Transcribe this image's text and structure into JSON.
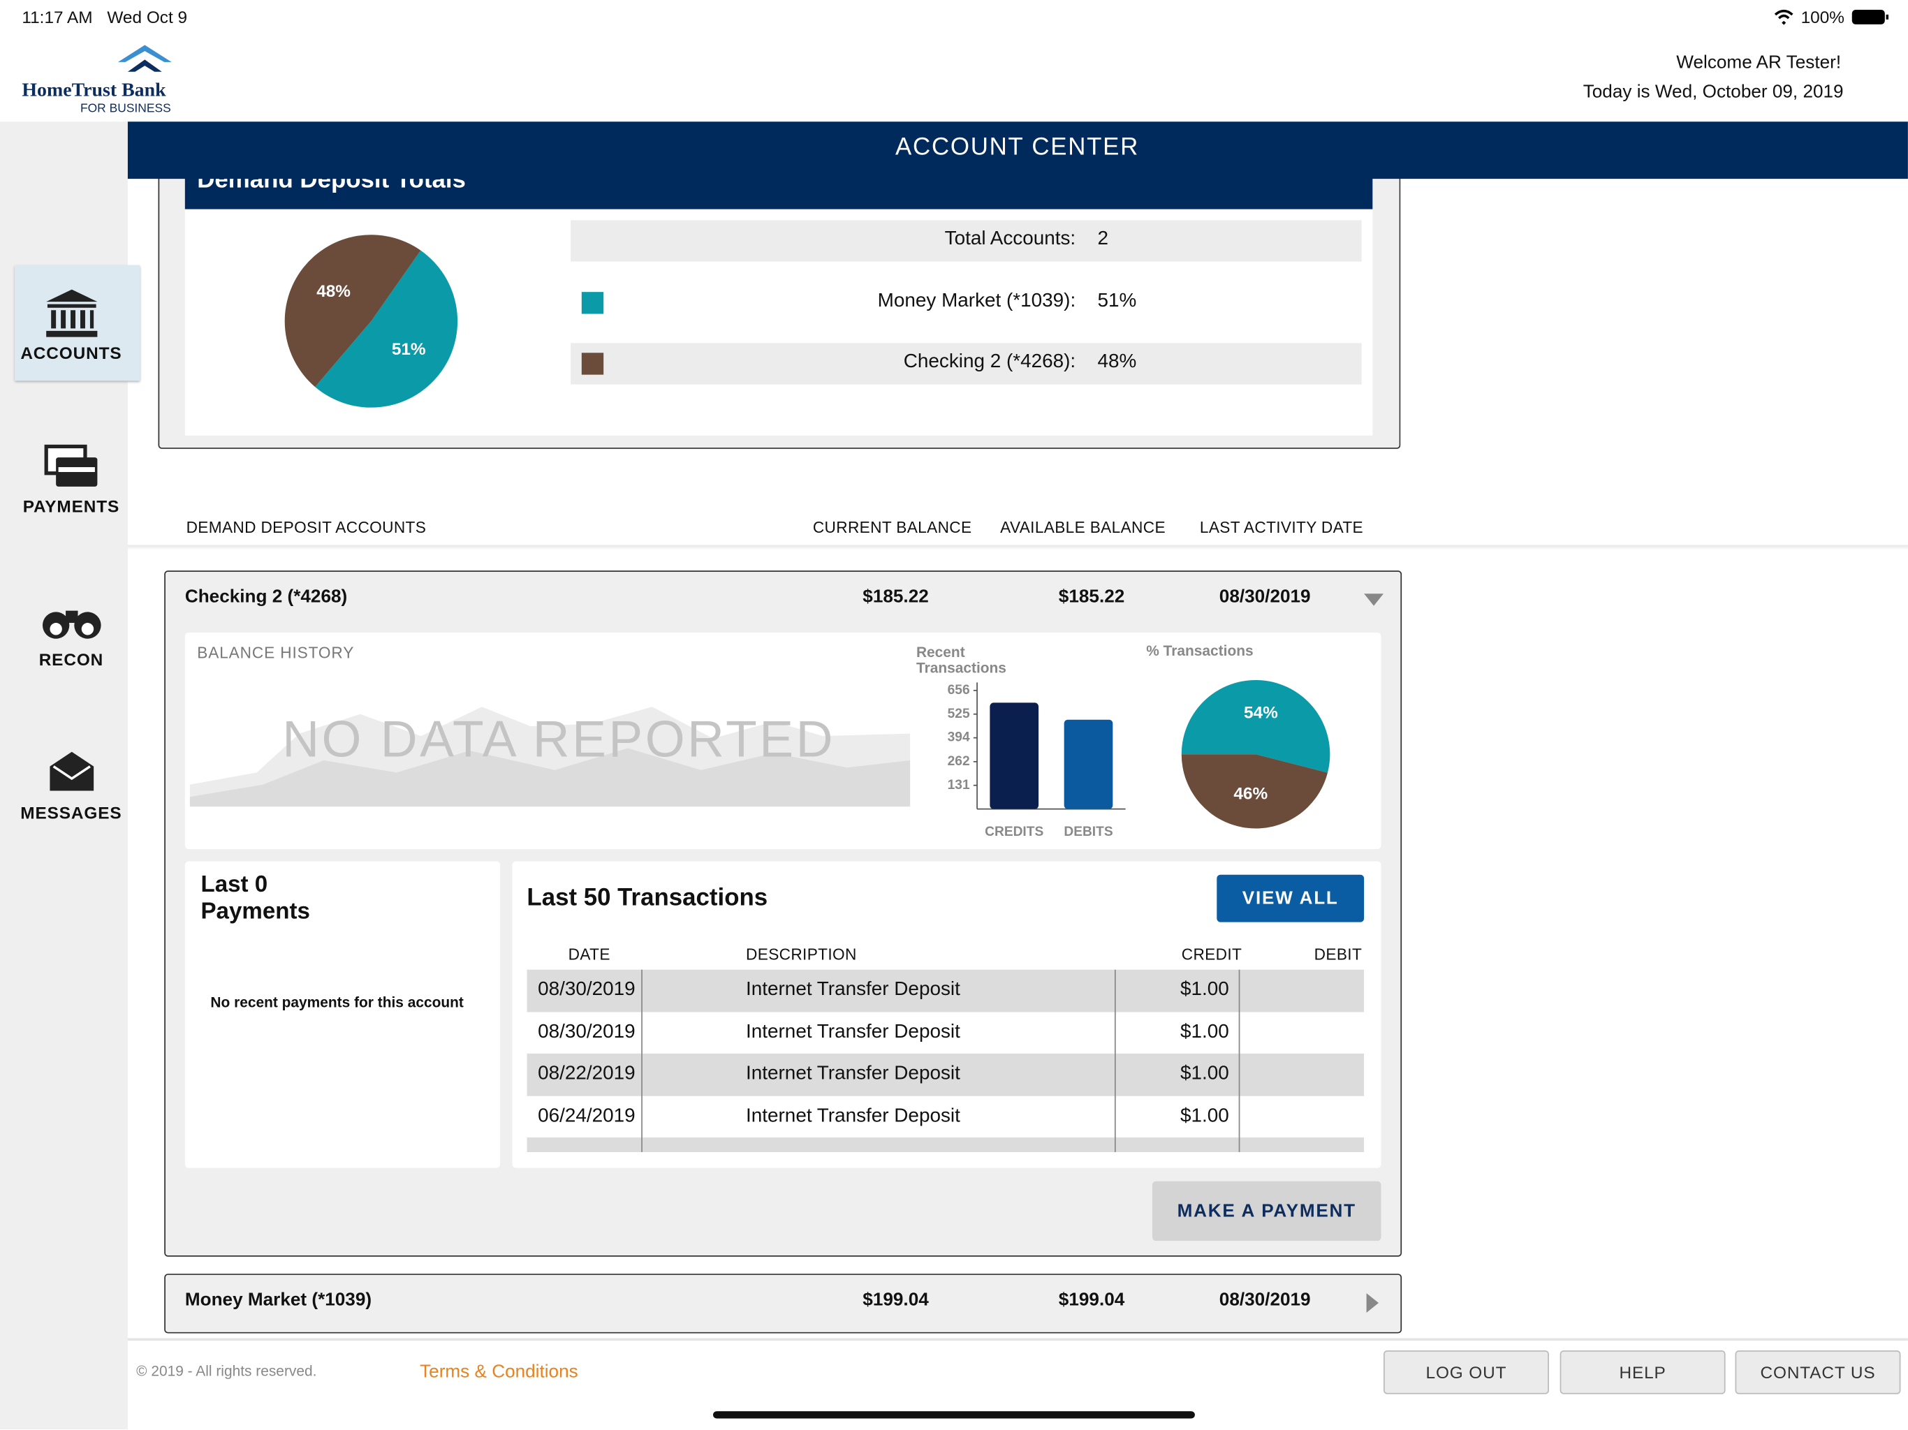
{
  "status": {
    "time": "11:17 AM",
    "date": "Wed Oct 9",
    "battery": "100%"
  },
  "header": {
    "logo": "HomeTrust Bank",
    "logo_sub": "FOR BUSINESS",
    "welcome": "Welcome AR Tester!",
    "today": "Today is Wed, October 09, 2019"
  },
  "nav": [
    {
      "label": "ACCOUNTS"
    },
    {
      "label": "PAYMENTS"
    },
    {
      "label": "RECON"
    },
    {
      "label": "MESSAGES"
    }
  ],
  "title": "ACCOUNT CENTER",
  "totals": {
    "title": "Demand Deposit Totals",
    "total_label": "Total Accounts:",
    "total_value": "2",
    "chart": {
      "type": "pie",
      "categories": [
        "Money Market (*1039):",
        "Checking 2 (*4268):"
      ],
      "values": [
        51,
        48
      ],
      "value_labels": [
        "51%",
        "48%"
      ],
      "colors": [
        "#0a9aa8",
        "#6b4c3b"
      ]
    }
  },
  "columns": [
    "DEMAND DEPOSIT ACCOUNTS",
    "CURRENT BALANCE",
    "AVAILABLE BALANCE",
    "LAST ACTIVITY DATE"
  ],
  "accounts": [
    {
      "name": "Checking 2 (*4268)",
      "current": "$185.22",
      "available": "$185.22",
      "date": "08/30/2019"
    },
    {
      "name": "Money Market (*1039)",
      "current": "$199.04",
      "available": "$199.04",
      "date": "08/30/2019"
    }
  ],
  "detail": {
    "balance_history": "BALANCE HISTORY",
    "no_data": "NO DATA REPORTED",
    "bar_chart": {
      "type": "bar",
      "title": "Recent Transactions",
      "categories": [
        "CREDITS",
        "DEBITS"
      ],
      "values": [
        588,
        494
      ],
      "colors": [
        "#0a1f4e",
        "#0b5aa0"
      ],
      "ylim": [
        0,
        700
      ],
      "yticks": [
        131,
        262,
        394,
        525,
        656
      ]
    },
    "pie_chart": {
      "type": "pie",
      "title": "% Transactions",
      "values": [
        54,
        46
      ],
      "value_labels": [
        "54%",
        "46%"
      ],
      "colors": [
        "#0a9aa8",
        "#6b4c3b"
      ]
    },
    "payments_title": "Last 0 Payments",
    "payments_empty": "No recent payments for this account",
    "transactions_title": "Last 50 Transactions",
    "view_all": "VIEW ALL",
    "transaction_columns": [
      "DATE",
      "DESCRIPTION",
      "CREDIT",
      "DEBIT"
    ],
    "transactions": [
      [
        "08/30/2019",
        "Internet Transfer Deposit",
        "$1.00"
      ],
      [
        "08/30/2019",
        "Internet Transfer Deposit",
        "$1.00"
      ],
      [
        "08/22/2019",
        "Internet Transfer Deposit",
        "$1.00"
      ],
      [
        "06/24/2019",
        "Internet Transfer Deposit",
        "$1.00"
      ]
    ],
    "make_payment": "MAKE A PAYMENT"
  },
  "footer": {
    "copyright": "© 2019 - All rights reserved.",
    "terms": "Terms & Conditions",
    "buttons": [
      "LOG OUT",
      "HELP",
      "CONTACT US"
    ]
  }
}
